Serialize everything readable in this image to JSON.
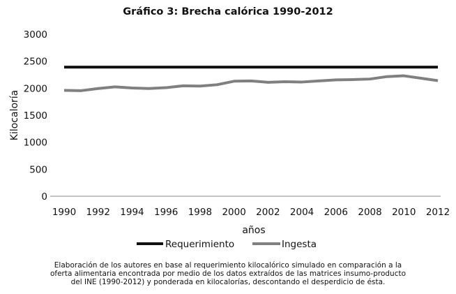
{
  "chart_data": {
    "type": "line",
    "title": "Gráfico 3: Brecha calórica 1990-2012",
    "xlabel": "años",
    "ylabel": "Kilocaloría",
    "x": [
      1990,
      1991,
      1992,
      1993,
      1994,
      1995,
      1996,
      1997,
      1998,
      1999,
      2000,
      2001,
      2002,
      2003,
      2004,
      2005,
      2006,
      2007,
      2008,
      2009,
      2010,
      2011,
      2012
    ],
    "xticks": [
      "1990",
      "1992",
      "1994",
      "1996",
      "1998",
      "2000",
      "2002",
      "2004",
      "2006",
      "2008",
      "2010",
      "2012"
    ],
    "yticks": [
      "0",
      "500",
      "1000",
      "1500",
      "2000",
      "2500",
      "3000"
    ],
    "ylim": [
      0,
      3000
    ],
    "grid": false,
    "legend_position": "bottom",
    "series": [
      {
        "name": "Requerimiento",
        "color": "#111111",
        "values": [
          2390,
          2390,
          2390,
          2390,
          2390,
          2390,
          2390,
          2390,
          2390,
          2390,
          2390,
          2390,
          2390,
          2390,
          2390,
          2390,
          2390,
          2390,
          2390,
          2390,
          2390,
          2390,
          2390
        ]
      },
      {
        "name": "Ingesta",
        "color": "#808080",
        "values": [
          1960,
          1955,
          1995,
          2025,
          2005,
          1995,
          2010,
          2045,
          2040,
          2065,
          2130,
          2135,
          2110,
          2120,
          2115,
          2135,
          2155,
          2160,
          2170,
          2215,
          2230,
          2185,
          2140
        ]
      }
    ]
  },
  "caption": [
    "Elaboración de los autores en base al requerimiento kilocalórico simulado en comparación a la",
    "oferta alimentaria encontrada por medio de los datos extraídos de las matrices insumo-producto",
    "del INE (1990-2012) y ponderada en kilocalorías, descontando el desperdicio de ésta."
  ]
}
